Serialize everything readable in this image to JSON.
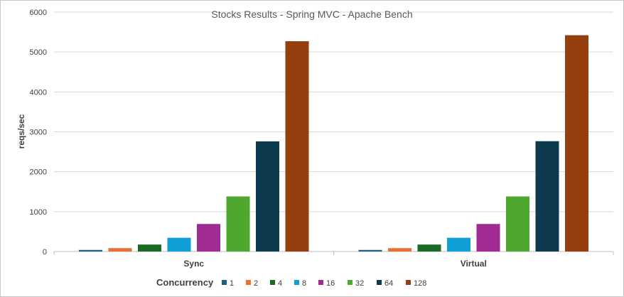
{
  "chart_data": {
    "type": "bar",
    "title": "Stocks Results - Spring MVC - Apache Bench",
    "xlabel": "",
    "ylabel": "reqs/sec",
    "ylim": [
      0,
      6000
    ],
    "yticks": [
      0,
      1000,
      2000,
      3000,
      4000,
      5000,
      6000
    ],
    "grid": true,
    "legend_position": "bottom",
    "legend_title": "Concurrency",
    "categories": [
      "Sync",
      "Virtual"
    ],
    "series": [
      {
        "name": "1",
        "color": "#1f5f7f",
        "values": [
          40,
          40
        ]
      },
      {
        "name": "2",
        "color": "#e97132",
        "values": [
          85,
          85
        ]
      },
      {
        "name": "4",
        "color": "#196b24",
        "values": [
          175,
          175
        ]
      },
      {
        "name": "8",
        "color": "#0f9ed5",
        "values": [
          345,
          345
        ]
      },
      {
        "name": "16",
        "color": "#a02b93",
        "values": [
          690,
          690
        ]
      },
      {
        "name": "32",
        "color": "#4ea72e",
        "values": [
          1380,
          1380
        ]
      },
      {
        "name": "64",
        "color": "#0e3a4f",
        "values": [
          2760,
          2765
        ]
      },
      {
        "name": "128",
        "color": "#953e0e",
        "values": [
          5270,
          5420
        ]
      }
    ]
  }
}
